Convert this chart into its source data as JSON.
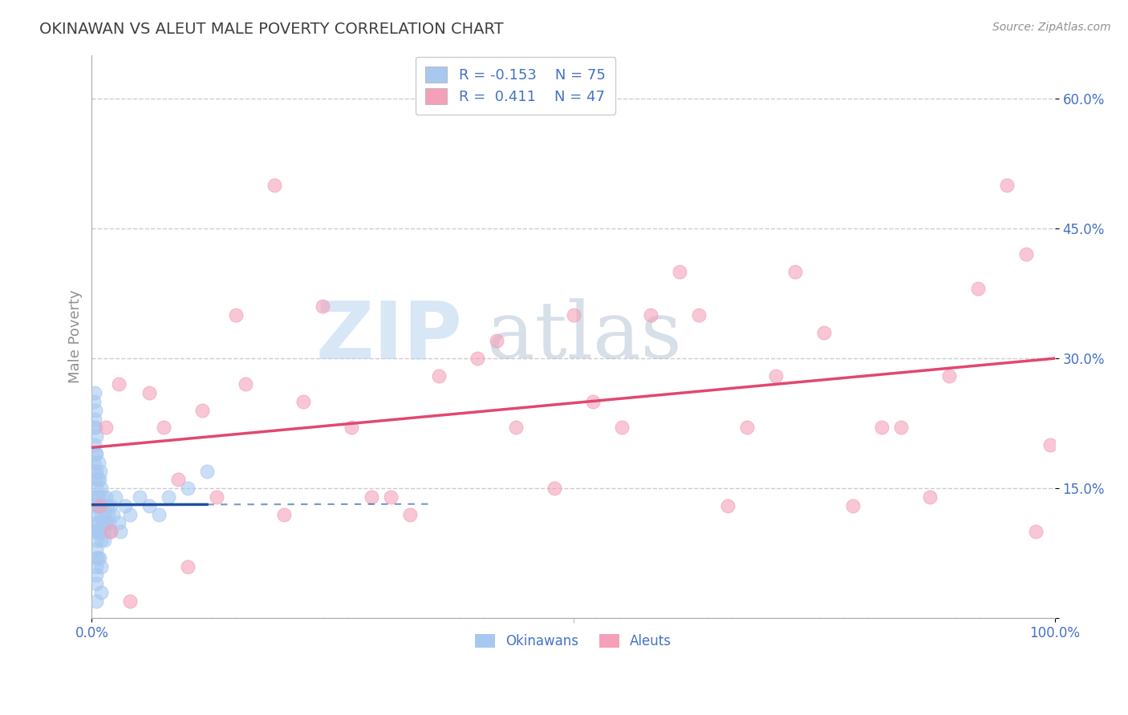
{
  "title": "OKINAWAN VS ALEUT MALE POVERTY CORRELATION CHART",
  "source_text": "Source: ZipAtlas.com",
  "ylabel": "Male Poverty",
  "xlim": [
    0.0,
    1.0
  ],
  "ylim": [
    0.0,
    0.65
  ],
  "ytick_vals": [
    0.0,
    0.15,
    0.3,
    0.45,
    0.6
  ],
  "ytick_labels": [
    "",
    "15.0%",
    "30.0%",
    "45.0%",
    "60.0%"
  ],
  "xtick_vals": [
    0.0,
    1.0
  ],
  "xtick_labels": [
    "0.0%",
    "100.0%"
  ],
  "okinawan_color": "#a8c8f0",
  "aleut_color": "#f4a0b8",
  "okinawan_line_color": "#2050a0",
  "aleut_line_color": "#e04870",
  "okinawan_r": -0.153,
  "okinawan_n": 75,
  "aleut_r": 0.411,
  "aleut_n": 47,
  "title_color": "#404040",
  "source_color": "#909090",
  "axis_label_color": "#909090",
  "tick_color": "#4472c4",
  "grid_color": "#cccccc",
  "background_color": "#ffffff",
  "okinawan_x": [
    0.002,
    0.002,
    0.002,
    0.003,
    0.003,
    0.003,
    0.003,
    0.003,
    0.004,
    0.004,
    0.004,
    0.004,
    0.004,
    0.004,
    0.005,
    0.005,
    0.005,
    0.005,
    0.005,
    0.005,
    0.005,
    0.005,
    0.005,
    0.005,
    0.005,
    0.005,
    0.005,
    0.005,
    0.005,
    0.005,
    0.006,
    0.006,
    0.006,
    0.006,
    0.007,
    0.007,
    0.007,
    0.008,
    0.008,
    0.008,
    0.008,
    0.009,
    0.009,
    0.009,
    0.01,
    0.01,
    0.01,
    0.01,
    0.01,
    0.011,
    0.011,
    0.012,
    0.012,
    0.013,
    0.013,
    0.014,
    0.015,
    0.015,
    0.016,
    0.017,
    0.018,
    0.019,
    0.02,
    0.022,
    0.025,
    0.028,
    0.03,
    0.035,
    0.04,
    0.05,
    0.06,
    0.07,
    0.08,
    0.1,
    0.12
  ],
  "okinawan_y": [
    0.18,
    0.22,
    0.25,
    0.14,
    0.17,
    0.2,
    0.23,
    0.26,
    0.1,
    0.13,
    0.16,
    0.19,
    0.22,
    0.24,
    0.05,
    0.07,
    0.09,
    0.11,
    0.13,
    0.15,
    0.17,
    0.19,
    0.21,
    0.12,
    0.14,
    0.1,
    0.08,
    0.06,
    0.04,
    0.02,
    0.16,
    0.13,
    0.1,
    0.07,
    0.18,
    0.14,
    0.11,
    0.16,
    0.13,
    0.1,
    0.07,
    0.17,
    0.13,
    0.1,
    0.15,
    0.12,
    0.09,
    0.06,
    0.03,
    0.14,
    0.11,
    0.13,
    0.1,
    0.12,
    0.09,
    0.11,
    0.14,
    0.11,
    0.13,
    0.12,
    0.11,
    0.1,
    0.13,
    0.12,
    0.14,
    0.11,
    0.1,
    0.13,
    0.12,
    0.14,
    0.13,
    0.12,
    0.14,
    0.15,
    0.17
  ],
  "aleut_x": [
    0.008,
    0.015,
    0.02,
    0.028,
    0.04,
    0.06,
    0.075,
    0.09,
    0.1,
    0.115,
    0.13,
    0.15,
    0.16,
    0.19,
    0.2,
    0.22,
    0.24,
    0.27,
    0.29,
    0.31,
    0.33,
    0.36,
    0.4,
    0.42,
    0.44,
    0.48,
    0.5,
    0.52,
    0.55,
    0.58,
    0.61,
    0.63,
    0.66,
    0.68,
    0.71,
    0.73,
    0.76,
    0.79,
    0.82,
    0.84,
    0.87,
    0.89,
    0.92,
    0.95,
    0.97,
    0.98,
    0.995
  ],
  "aleut_y": [
    0.13,
    0.22,
    0.1,
    0.27,
    0.02,
    0.26,
    0.22,
    0.16,
    0.06,
    0.24,
    0.14,
    0.35,
    0.27,
    0.5,
    0.12,
    0.25,
    0.36,
    0.22,
    0.14,
    0.14,
    0.12,
    0.28,
    0.3,
    0.32,
    0.22,
    0.15,
    0.35,
    0.25,
    0.22,
    0.35,
    0.4,
    0.35,
    0.13,
    0.22,
    0.28,
    0.4,
    0.33,
    0.13,
    0.22,
    0.22,
    0.14,
    0.28,
    0.38,
    0.5,
    0.42,
    0.1,
    0.2
  ]
}
